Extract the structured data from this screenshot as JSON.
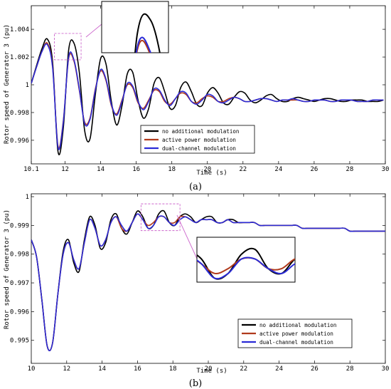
{
  "chart_data": [
    {
      "type": "line",
      "panel_label": "(a)",
      "xlabel": "Time (s)",
      "ylabel": "Rotor speed of Generator 3  (pu)",
      "xlim": [
        10.1,
        30
      ],
      "ylim": [
        0.9943,
        1.0057
      ],
      "xticks": [
        {
          "v": 10.1,
          "label": "10.1"
        },
        {
          "v": 12,
          "label": "12"
        },
        {
          "v": 14,
          "label": "14"
        },
        {
          "v": 16,
          "label": "16"
        },
        {
          "v": 18,
          "label": "18"
        },
        {
          "v": 20,
          "label": "20"
        },
        {
          "v": 22,
          "label": "22"
        },
        {
          "v": 24,
          "label": "24"
        },
        {
          "v": 26,
          "label": "26"
        },
        {
          "v": 28,
          "label": "28"
        },
        {
          "v": 30,
          "label": "30"
        }
      ],
      "yticks": [
        {
          "v": 0.996,
          "label": "0.996"
        },
        {
          "v": 0.998,
          "label": "0.998"
        },
        {
          "v": 1.0,
          "label": "1"
        },
        {
          "v": 1.002,
          "label": "1.002"
        },
        {
          "v": 1.004,
          "label": "1.004"
        }
      ],
      "legend_position": "lower-center",
      "zoom_box": {
        "x0": 11.4,
        "x1": 12.9,
        "y0": 1.0018,
        "y1": 1.0037
      },
      "series": [
        {
          "name": "no additional modulation",
          "color": "#000000",
          "x": [
            10.1,
            10.4,
            10.7,
            11.0,
            11.3,
            11.6,
            11.9,
            12.2,
            12.5,
            12.8,
            13.1,
            13.4,
            13.7,
            14.0,
            14.3,
            14.6,
            14.9,
            15.2,
            15.5,
            15.8,
            16.1,
            16.4,
            16.7,
            17.0,
            17.3,
            17.6,
            17.9,
            18.2,
            18.5,
            18.8,
            19.1,
            19.4,
            19.7,
            20.0,
            20.3,
            20.6,
            20.9,
            21.2,
            21.5,
            21.8,
            22.1,
            22.4,
            22.7,
            23.0,
            23.3,
            23.6,
            23.9,
            24.2,
            24.5,
            24.8,
            25.1,
            25.4,
            25.7,
            26.0,
            26.3,
            26.6,
            26.9,
            27.2,
            27.5,
            27.8,
            28.1,
            28.4,
            28.7,
            29.0,
            29.3,
            29.6,
            29.9
          ],
          "y": [
            1.0001,
            1.0014,
            1.0026,
            1.0033,
            1.0016,
            0.9952,
            0.9969,
            1.0025,
            1.003,
            1.0009,
            0.9967,
            0.9961,
            0.9993,
            1.0019,
            1.0015,
            0.9988,
            0.9971,
            0.9985,
            1.0008,
            1.0009,
            0.9989,
            0.9976,
            0.9983,
            1.0001,
            1.0005,
            0.9995,
            0.9983,
            0.9985,
            0.9998,
            1.0002,
            0.9995,
            0.9986,
            0.9985,
            0.9994,
            0.9998,
            0.9994,
            0.9987,
            0.9986,
            0.9991,
            0.9995,
            0.9994,
            0.9989,
            0.9987,
            0.9989,
            0.9992,
            0.9993,
            0.999,
            0.9988,
            0.9988,
            0.999,
            0.9991,
            0.999,
            0.9989,
            0.9988,
            0.9989,
            0.999,
            0.999,
            0.9989,
            0.9988,
            0.9988,
            0.9989,
            0.9989,
            0.9989,
            0.9988,
            0.9988,
            0.9988,
            0.9989
          ]
        },
        {
          "name": "active power modulation",
          "color": "#b03a1c",
          "x": [
            10.1,
            10.4,
            10.7,
            11.0,
            11.3,
            11.6,
            11.9,
            12.2,
            12.5,
            12.8,
            13.1,
            13.4,
            13.7,
            14.0,
            14.3,
            14.6,
            14.9,
            15.2,
            15.5,
            15.8,
            16.1,
            16.4,
            16.7,
            17.0,
            17.3,
            17.6,
            17.9,
            18.2,
            18.5,
            18.8,
            19.1,
            19.4,
            19.7,
            20.0,
            20.3,
            20.6,
            20.9,
            21.2,
            21.5,
            21.8,
            22.1,
            22.4,
            22.7,
            23.0,
            23.3,
            23.6,
            23.9,
            24.2,
            24.5,
            24.8,
            25.1,
            25.4,
            25.7,
            26.0,
            26.3,
            26.6,
            26.9,
            27.2,
            27.5,
            27.8,
            28.1,
            28.4,
            28.7,
            29.0,
            29.3,
            29.6,
            29.9
          ],
          "y": [
            1.0001,
            1.0013,
            1.0024,
            1.003,
            1.0013,
            0.9956,
            0.9974,
            1.0019,
            1.0017,
            0.9996,
            0.9973,
            0.9976,
            0.9997,
            1.001,
            1.0003,
            0.9985,
            0.9979,
            0.9989,
            1.0,
            0.9998,
            0.9987,
            0.9983,
            0.9989,
            0.9996,
            0.9995,
            0.9988,
            0.9986,
            0.999,
            0.9994,
            0.9993,
            0.9988,
            0.9987,
            0.999,
            0.9992,
            0.9991,
            0.9988,
            0.9988,
            0.999,
            0.9991,
            0.999,
            0.9988,
            0.9988,
            0.9989,
            0.999,
            0.999,
            0.9989,
            0.9988,
            0.9989,
            0.9989,
            0.9989,
            0.9989,
            0.9988,
            0.9988,
            0.9989,
            0.9989,
            0.9989,
            0.9988,
            0.9988,
            0.9989,
            0.9989,
            0.9989,
            0.9988,
            0.9988,
            0.9988,
            0.9989,
            0.9989,
            0.9989
          ]
        },
        {
          "name": "dual-channel modulation",
          "color": "#2b2bd6",
          "x": [
            10.1,
            10.4,
            10.7,
            11.0,
            11.3,
            11.6,
            11.9,
            12.2,
            12.5,
            12.8,
            13.1,
            13.4,
            13.7,
            14.0,
            14.3,
            14.6,
            14.9,
            15.2,
            15.5,
            15.8,
            16.1,
            16.4,
            16.7,
            17.0,
            17.3,
            17.6,
            17.9,
            18.2,
            18.5,
            18.8,
            19.1,
            19.4,
            19.7,
            20.0,
            20.3,
            20.6,
            20.9,
            21.2,
            21.5,
            21.8,
            22.1,
            22.4,
            22.7,
            23.0,
            23.3,
            23.6,
            23.9,
            24.2,
            24.5,
            24.8,
            25.1,
            25.4,
            25.7,
            26.0,
            26.3,
            26.6,
            26.9,
            27.2,
            27.5,
            27.8,
            28.1,
            28.4,
            28.7,
            29.0,
            29.3,
            29.6,
            29.9
          ],
          "y": [
            1.0001,
            1.0013,
            1.0024,
            1.0029,
            1.0012,
            0.9955,
            0.9973,
            1.002,
            1.0018,
            0.9997,
            0.9972,
            0.9975,
            0.9996,
            1.0011,
            1.0004,
            0.9986,
            0.9978,
            0.9988,
            1.0001,
            0.9999,
            0.9988,
            0.9982,
            0.9988,
            0.9997,
            0.9996,
            0.9989,
            0.9985,
            0.999,
            0.9995,
            0.9994,
            0.9988,
            0.9986,
            0.9989,
            0.9993,
            0.9992,
            0.9988,
            0.9987,
            0.9989,
            0.9991,
            0.999,
            0.9988,
            0.9988,
            0.9989,
            0.999,
            0.999,
            0.9989,
            0.9988,
            0.9989,
            0.9989,
            0.999,
            0.9989,
            0.9988,
            0.9988,
            0.9989,
            0.9989,
            0.9989,
            0.9988,
            0.9988,
            0.9989,
            0.9989,
            0.9989,
            0.9988,
            0.9988,
            0.9988,
            0.9989,
            0.9989,
            0.9989
          ]
        }
      ]
    },
    {
      "type": "line",
      "panel_label": "(b)",
      "xlabel": "Time (s)",
      "ylabel": "Rotor speed of Generator 3  (pu)",
      "xlim": [
        10,
        30
      ],
      "ylim": [
        0.9942,
        1.0001
      ],
      "xticks": [
        {
          "v": 10,
          "label": "10"
        },
        {
          "v": 12,
          "label": "12"
        },
        {
          "v": 14,
          "label": "14"
        },
        {
          "v": 16,
          "label": "16"
        },
        {
          "v": 18,
          "label": "18"
        },
        {
          "v": 20,
          "label": "20"
        },
        {
          "v": 22,
          "label": "22"
        },
        {
          "v": 24,
          "label": "24"
        },
        {
          "v": 26,
          "label": "26"
        },
        {
          "v": 28,
          "label": "28"
        },
        {
          "v": 30,
          "label": "30"
        }
      ],
      "yticks": [
        {
          "v": 0.995,
          "label": "0.995"
        },
        {
          "v": 0.996,
          "label": "0.996"
        },
        {
          "v": 0.997,
          "label": "0.997"
        },
        {
          "v": 0.998,
          "label": "0.998"
        },
        {
          "v": 0.999,
          "label": "0.999"
        },
        {
          "v": 1.0,
          "label": "1"
        }
      ],
      "legend_position": "lower-right",
      "zoom_box": {
        "x0": 16.2,
        "x1": 18.4,
        "y0": 0.99882,
        "y1": 0.99975
      },
      "series": [
        {
          "name": "no additional modulation",
          "color": "#000000",
          "x": [
            10.0,
            10.3,
            10.6,
            10.9,
            11.2,
            11.5,
            11.8,
            12.1,
            12.4,
            12.7,
            13.0,
            13.3,
            13.6,
            13.9,
            14.2,
            14.5,
            14.8,
            15.1,
            15.4,
            15.7,
            16.0,
            16.3,
            16.6,
            16.9,
            17.2,
            17.5,
            17.8,
            18.1,
            18.4,
            18.7,
            19.0,
            19.3,
            19.6,
            19.9,
            20.2,
            20.5,
            20.8,
            21.1,
            21.4,
            21.7,
            22.0,
            22.3,
            22.6,
            22.9,
            23.2,
            23.5,
            23.8,
            24.1,
            24.4,
            24.7,
            25.0,
            25.3,
            25.6,
            25.9,
            26.2,
            26.5,
            26.8,
            27.1,
            27.4,
            27.7,
            28.0,
            28.3,
            28.6,
            28.9,
            29.2,
            29.5,
            29.8,
            30.0
          ],
          "y": [
            0.9985,
            0.9979,
            0.9964,
            0.9948,
            0.9949,
            0.9966,
            0.9981,
            0.9985,
            0.9977,
            0.9974,
            0.9985,
            0.9993,
            0.999,
            0.9982,
            0.9984,
            0.9992,
            0.9994,
            0.9989,
            0.9987,
            0.9991,
            0.9995,
            0.9993,
            0.9989,
            0.999,
            0.9994,
            0.9995,
            0.9991,
            0.999,
            0.9993,
            0.9994,
            0.9993,
            0.9991,
            0.9992,
            0.9993,
            0.9993,
            0.9991,
            0.9991,
            0.9992,
            0.9992,
            0.9991,
            0.9991,
            0.9991,
            0.9991,
            0.999,
            0.999,
            0.999,
            0.999,
            0.999,
            0.999,
            0.999,
            0.999,
            0.9989,
            0.9989,
            0.9989,
            0.9989,
            0.9989,
            0.9989,
            0.9989,
            0.9989,
            0.9989,
            0.9988,
            0.9988,
            0.9988,
            0.9988,
            0.9988,
            0.9988,
            0.9988,
            0.9988
          ]
        },
        {
          "name": "active power modulation",
          "color": "#b03a1c",
          "x": [
            10.0,
            10.3,
            10.6,
            10.9,
            11.2,
            11.5,
            11.8,
            12.1,
            12.4,
            12.7,
            13.0,
            13.3,
            13.6,
            13.9,
            14.2,
            14.5,
            14.8,
            15.1,
            15.4,
            15.7,
            16.0,
            16.3,
            16.6,
            16.9,
            17.2,
            17.5,
            17.8,
            18.1,
            18.4,
            18.7,
            19.0,
            19.3,
            19.6,
            19.9,
            20.2,
            20.5,
            20.8,
            21.1,
            21.4,
            21.7,
            22.0,
            22.3,
            22.6,
            22.9,
            23.2,
            23.5,
            23.8,
            24.1,
            24.4,
            24.7,
            25.0,
            25.3,
            25.6,
            25.9,
            26.2,
            26.5,
            26.8,
            27.1,
            27.4,
            27.7,
            28.0,
            28.3,
            28.6,
            28.9,
            29.2,
            29.5,
            29.8,
            30.0
          ],
          "y": [
            0.9985,
            0.9979,
            0.9964,
            0.9948,
            0.9949,
            0.9966,
            0.998,
            0.9984,
            0.9978,
            0.9975,
            0.9984,
            0.9992,
            0.9989,
            0.9983,
            0.9985,
            0.9991,
            0.9993,
            0.9989,
            0.9988,
            0.9991,
            0.9994,
            0.9992,
            0.999,
            0.9991,
            0.9993,
            0.9993,
            0.9991,
            0.9991,
            0.9993,
            0.9993,
            0.9992,
            0.9991,
            0.9992,
            0.9992,
            0.9992,
            0.9991,
            0.9991,
            0.9992,
            0.9991,
            0.9991,
            0.9991,
            0.9991,
            0.9991,
            0.999,
            0.999,
            0.999,
            0.999,
            0.999,
            0.999,
            0.999,
            0.999,
            0.9989,
            0.9989,
            0.9989,
            0.9989,
            0.9989,
            0.9989,
            0.9989,
            0.9989,
            0.9989,
            0.9988,
            0.9988,
            0.9988,
            0.9988,
            0.9988,
            0.9988,
            0.9988,
            0.9988
          ]
        },
        {
          "name": "dual-channel modulation",
          "color": "#2b2bd6",
          "x": [
            10.0,
            10.3,
            10.6,
            10.9,
            11.2,
            11.5,
            11.8,
            12.1,
            12.4,
            12.7,
            13.0,
            13.3,
            13.6,
            13.9,
            14.2,
            14.5,
            14.8,
            15.1,
            15.4,
            15.7,
            16.0,
            16.3,
            16.6,
            16.9,
            17.2,
            17.5,
            17.8,
            18.1,
            18.4,
            18.7,
            19.0,
            19.3,
            19.6,
            19.9,
            20.2,
            20.5,
            20.8,
            21.1,
            21.4,
            21.7,
            22.0,
            22.3,
            22.6,
            22.9,
            23.2,
            23.5,
            23.8,
            24.1,
            24.4,
            24.7,
            25.0,
            25.3,
            25.6,
            25.9,
            26.2,
            26.5,
            26.8,
            27.1,
            27.4,
            27.7,
            28.0,
            28.3,
            28.6,
            28.9,
            29.2,
            29.5,
            29.8,
            30.0
          ],
          "y": [
            0.9985,
            0.9979,
            0.9964,
            0.9948,
            0.9949,
            0.9966,
            0.998,
            0.9984,
            0.9978,
            0.9975,
            0.9984,
            0.9992,
            0.9989,
            0.9983,
            0.9985,
            0.9991,
            0.9993,
            0.999,
            0.9988,
            0.9991,
            0.9994,
            0.9992,
            0.9989,
            0.999,
            0.9993,
            0.9993,
            0.9991,
            0.999,
            0.9992,
            0.9993,
            0.9992,
            0.9991,
            0.9992,
            0.9992,
            0.9992,
            0.9991,
            0.9991,
            0.9992,
            0.9991,
            0.9991,
            0.9991,
            0.9991,
            0.9991,
            0.999,
            0.999,
            0.999,
            0.999,
            0.999,
            0.999,
            0.999,
            0.999,
            0.9989,
            0.9989,
            0.9989,
            0.9989,
            0.9989,
            0.9989,
            0.9989,
            0.9989,
            0.9989,
            0.9988,
            0.9988,
            0.9988,
            0.9988,
            0.9988,
            0.9988,
            0.9988,
            0.9988
          ]
        }
      ]
    }
  ]
}
